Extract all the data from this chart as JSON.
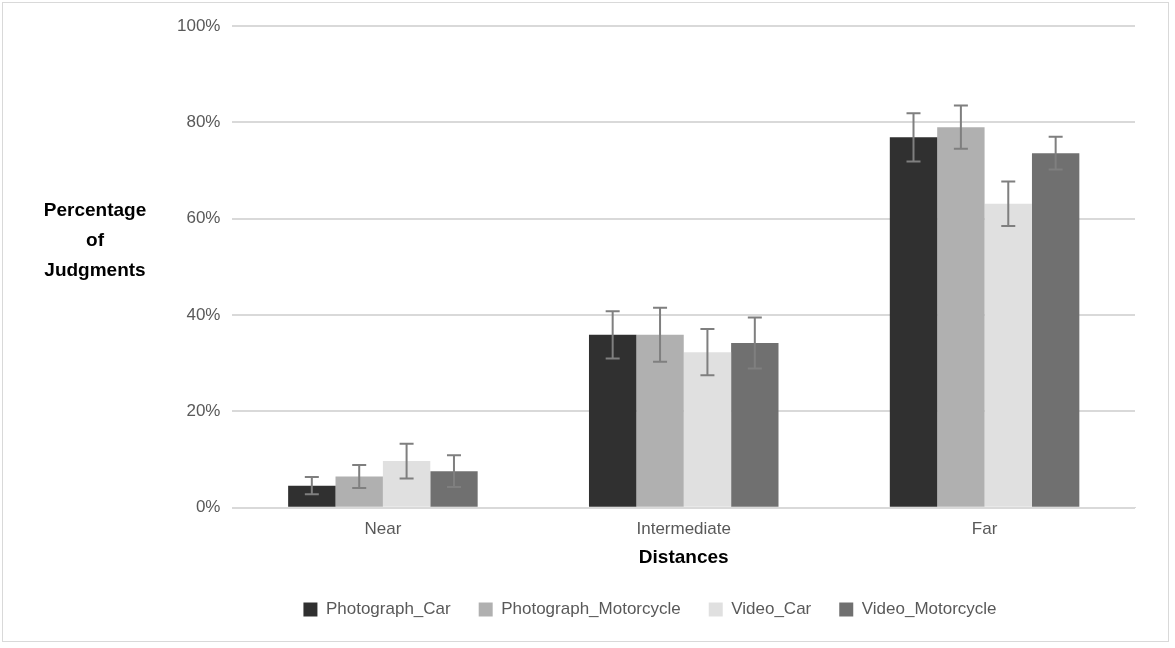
{
  "chart_data": {
    "type": "bar",
    "xlabel": "Distances",
    "ylabel": "Percentage of Judgments",
    "categories": [
      "Near",
      "Intermediate",
      "Far"
    ],
    "series": [
      {
        "name": "Photograph_Car",
        "color": "#303030",
        "values": [
          4.6,
          35.9,
          76.9
        ],
        "errors": [
          1.8,
          4.9,
          5.0
        ]
      },
      {
        "name": "Photograph_Motorcycle",
        "color": "#b0b0b0",
        "values": [
          6.5,
          35.9,
          79.0
        ],
        "errors": [
          2.4,
          5.6,
          4.5
        ]
      },
      {
        "name": "Video_Car",
        "color": "#e0e0e0",
        "values": [
          9.7,
          32.3,
          63.1
        ],
        "errors": [
          3.6,
          4.8,
          4.6
        ]
      },
      {
        "name": "Video_Motorcycle",
        "color": "#707070",
        "values": [
          7.6,
          34.2,
          73.6
        ],
        "errors": [
          3.3,
          5.3,
          3.4
        ]
      }
    ],
    "ylim": [
      0,
      100
    ],
    "yticks": [
      {
        "value": 0,
        "label": "0%"
      },
      {
        "value": 20,
        "label": "20%"
      },
      {
        "value": 40,
        "label": "40%"
      },
      {
        "value": 60,
        "label": "60%"
      },
      {
        "value": 80,
        "label": "80%"
      },
      {
        "value": 100,
        "label": "100%"
      }
    ],
    "grid": "y",
    "legend": "bottom"
  }
}
